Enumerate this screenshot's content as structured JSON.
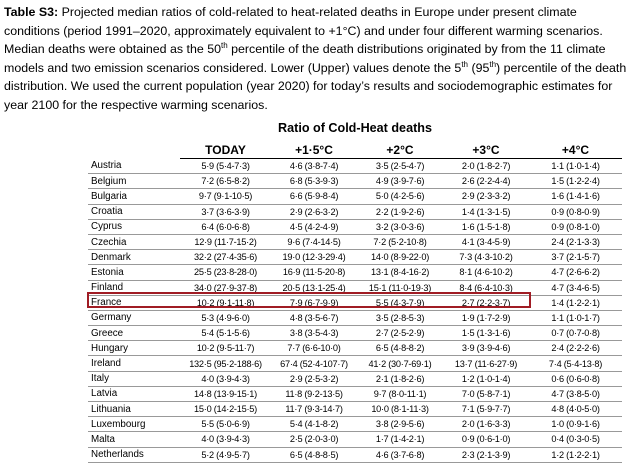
{
  "caption": {
    "label": "Table S3:",
    "text1": " Projected median ratios of cold-related to heat-related deaths in Europe under present climate conditions (period 1991–2020, approximately equivalent to +1°C) and under four different warming scenarios. Median deaths were obtained as the 50",
    "sup1": "th",
    "text2": " percentile of the death distributions originated by from the 11 climate models and two emission scenarios considered. Lower (Upper) values denote the 5",
    "sup2": "th",
    "text3": " (95",
    "sup3": "th",
    "text4": ") percentile of the death distribution. We used the current population (year 2020) for today’s results and sociodemographic estimates for year 2100 for the respective warming scenarios."
  },
  "table": {
    "title": "Ratio of Cold-Heat deaths",
    "headers": [
      "",
      "TODAY",
      "+1·5°C",
      "+2°C",
      "+3°C",
      "+4°C"
    ],
    "highlighted_country": "France",
    "highlight_color": "#a01c24",
    "rows": [
      [
        "Austria",
        "5·9 (5·4-7·3)",
        "4·6 (3·8-7·4)",
        "3·5 (2·5-4·7)",
        "2·0 (1·8-2·7)",
        "1·1 (1·0-1·4)"
      ],
      [
        "Belgium",
        "7·2 (6·5-8·2)",
        "6·8 (5·3-9·3)",
        "4·9 (3·9-7·6)",
        "2·6 (2·2-4·4)",
        "1·5 (1·2-2·4)"
      ],
      [
        "Bulgaria",
        "9·7 (9·1-10·5)",
        "6·6 (5·9-8·4)",
        "5·0 (4·2-5·6)",
        "2·9 (2·3-3·2)",
        "1·6 (1·4-1·6)"
      ],
      [
        "Croatia",
        "3·7 (3·6-3·9)",
        "2·9 (2·6-3·2)",
        "2·2 (1·9-2·6)",
        "1·4 (1·3-1·5)",
        "0·9 (0·8-0·9)"
      ],
      [
        "Cyprus",
        "6·4 (6·0-6·8)",
        "4·5 (4·2-4·9)",
        "3·2 (3·0-3·6)",
        "1·6 (1·5-1·8)",
        "0·9 (0·8-1·0)"
      ],
      [
        "Czechia",
        "12·9 (11·7-15·2)",
        "9·6 (7·4-14·5)",
        "7·2 (5·2-10·8)",
        "4·1 (3·4-5·9)",
        "2·4 (2·1-3·3)"
      ],
      [
        "Denmark",
        "32·2 (27·4-35·6)",
        "19·0 (12·3-29·4)",
        "14·0 (8·9-22·0)",
        "7·3 (4·3-10·2)",
        "3·7 (2·1-5·7)"
      ],
      [
        "Estonia",
        "25·5 (23·8-28·0)",
        "16·9 (11·5-20·8)",
        "13·1 (8·4-16·2)",
        "8·1 (4·6-10·2)",
        "4·7 (2·6-6·2)"
      ],
      [
        "Finland",
        "34·0 (27·9-37·8)",
        "20·5 (13·1-25·4)",
        "15·1 (11·0-19·3)",
        "8·4 (6·4-10·3)",
        "4·7 (3·4-6·5)"
      ],
      [
        "France",
        "10·2 (9·1-11·8)",
        "7·9 (6·7-9·9)",
        "5·5 (4·3-7·9)",
        "2·7 (2·2-3·7)",
        "1·4 (1·2-2·1)"
      ],
      [
        "Germany",
        "5·3 (4·9-6·0)",
        "4·8 (3·5-6·7)",
        "3·5 (2·8-5·3)",
        "1·9 (1·7-2·9)",
        "1·1 (1·0-1·7)"
      ],
      [
        "Greece",
        "5·4 (5·1-5·6)",
        "3·8 (3·5-4·3)",
        "2·7 (2·5-2·9)",
        "1·5 (1·3-1·6)",
        "0·7 (0·7-0·8)"
      ],
      [
        "Hungary",
        "10·2 (9·5-11·7)",
        "7·7 (6·6-10·0)",
        "6·5 (4·8-8·2)",
        "3·9 (3·9-4·6)",
        "2·4 (2·2-2·6)"
      ],
      [
        "Ireland",
        "132·5 (95·2-188·6)",
        "67·4 (52·4-107·7)",
        "41·2 (30·7-69·1)",
        "13·7 (11·6-27·9)",
        "7·4 (5·4-13·8)"
      ],
      [
        "Italy",
        "4·0 (3·9-4·3)",
        "2·9 (2·5-3·2)",
        "2·1 (1·8-2·6)",
        "1·2 (1·0-1·4)",
        "0·6 (0·6-0·8)"
      ],
      [
        "Latvia",
        "14·8 (13·9-15·1)",
        "11·8 (9·2-13·5)",
        "9·7 (8·0-11·1)",
        "7·0 (5·8-7·1)",
        "4·7 (3·8-5·0)"
      ],
      [
        "Lithuania",
        "15·0 (14·2-15·5)",
        "11·7 (9·3-14·7)",
        "10·0 (8·1-11·3)",
        "7·1 (5·9-7·7)",
        "4·8 (4·0-5·0)"
      ],
      [
        "Luxembourg",
        "5·5 (5·0-6·9)",
        "5·4 (4·1-8·2)",
        "3·8 (2·9-5·6)",
        "2·0 (1·6-3·3)",
        "1·0 (0·9-1·6)"
      ],
      [
        "Malta",
        "4·0 (3·9-4·3)",
        "2·5 (2·0-3·0)",
        "1·7 (1·4-2·1)",
        "0·9 (0·6-1·0)",
        "0·4 (0·3-0·5)"
      ],
      [
        "Netherlands",
        "5·2 (4·9-5·7)",
        "6·5 (4·8-8·5)",
        "4·6 (3·7-6·8)",
        "2·3 (2·1-3·9)",
        "1·2 (1·2-2·1)"
      ]
    ]
  }
}
